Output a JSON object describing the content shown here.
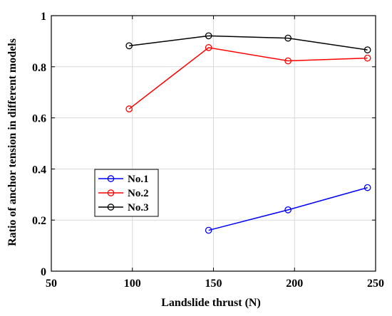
{
  "chart_data": {
    "type": "line",
    "xlabel": "Landslide thrust (N)",
    "ylabel": "Ratio of anchor tension in different models",
    "xlim": [
      50,
      250
    ],
    "ylim": [
      0,
      1
    ],
    "xticks": [
      50,
      100,
      150,
      200,
      250
    ],
    "yticks": [
      0,
      0.2,
      0.4,
      0.6,
      0.8,
      1
    ],
    "xtick_labels": [
      "50",
      "100",
      "150",
      "200",
      "250"
    ],
    "ytick_labels": [
      "0",
      "0.2",
      "0.4",
      "0.6",
      "0.8",
      "1"
    ],
    "grid": true,
    "legend_position": "lower-left",
    "series": [
      {
        "name": "No.1",
        "color": "#0000ff",
        "marker": "circle",
        "x": [
          147,
          196,
          245
        ],
        "y": [
          0.16,
          0.24,
          0.327
        ]
      },
      {
        "name": "No.2",
        "color": "#ff0000",
        "marker": "circle",
        "x": [
          98,
          147,
          196,
          245
        ],
        "y": [
          0.635,
          0.875,
          0.823,
          0.834
        ]
      },
      {
        "name": "No.3",
        "color": "#000000",
        "marker": "circle",
        "x": [
          98,
          147,
          196,
          245
        ],
        "y": [
          0.882,
          0.921,
          0.912,
          0.866
        ]
      }
    ]
  }
}
